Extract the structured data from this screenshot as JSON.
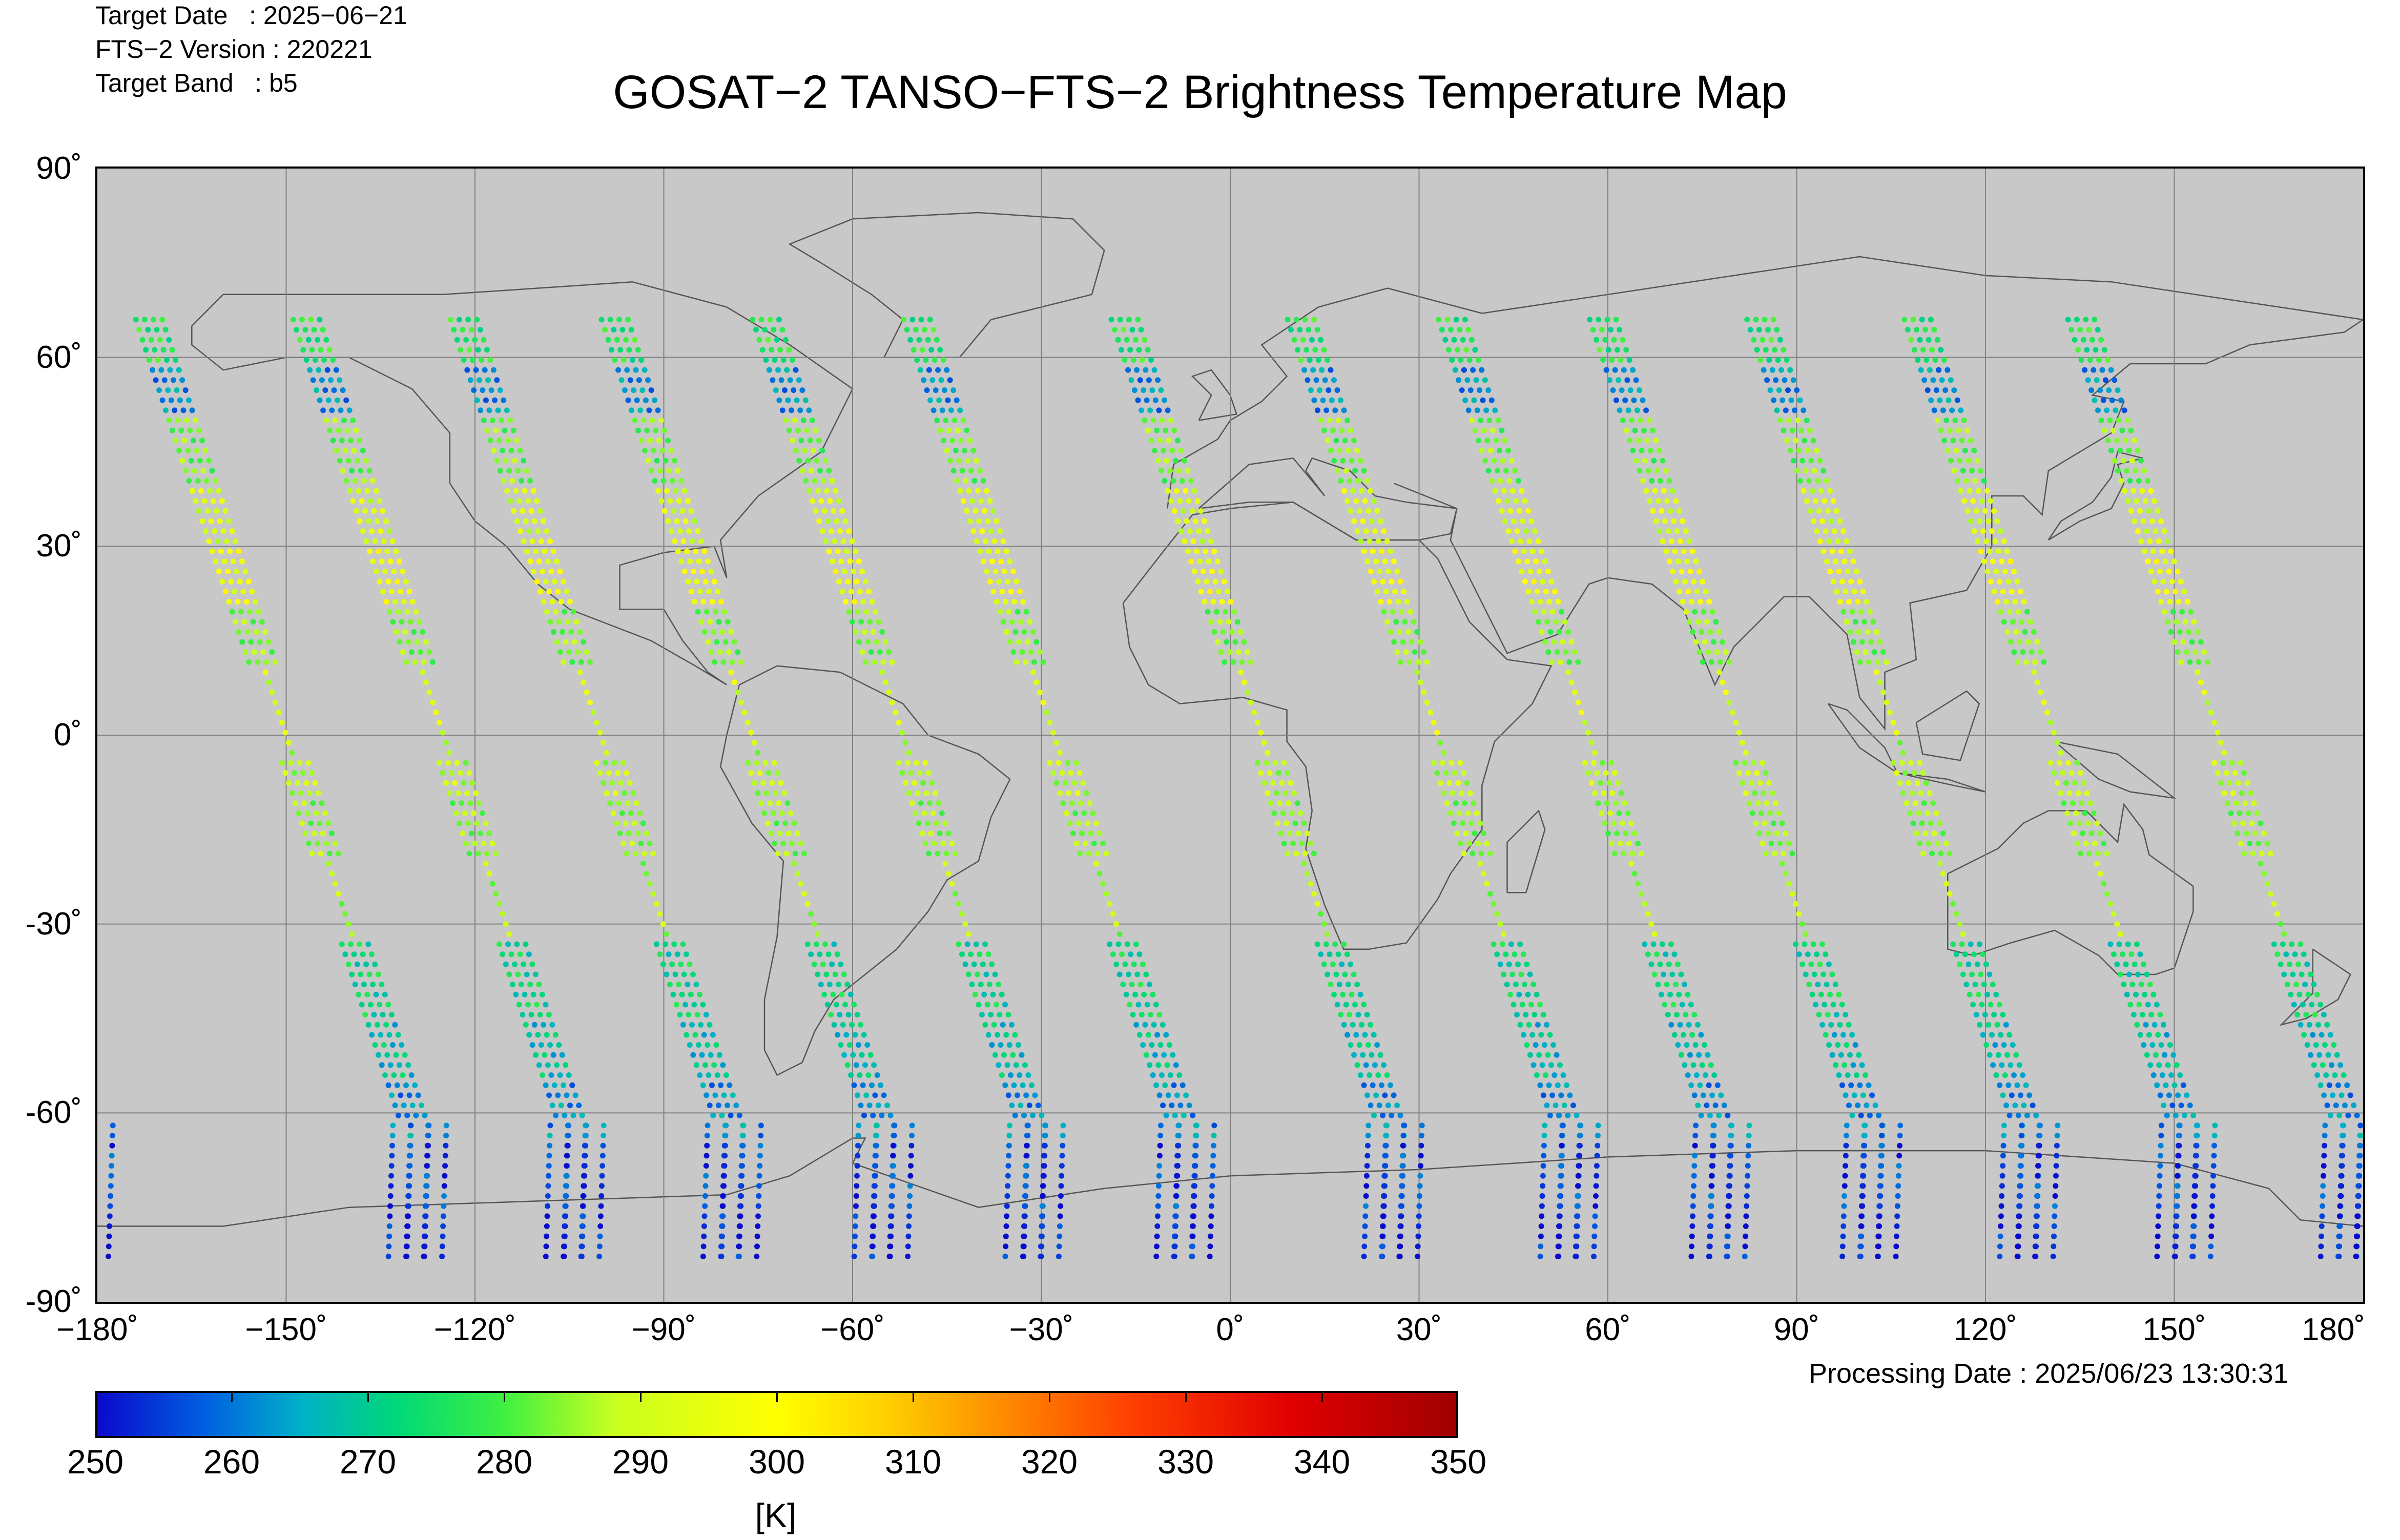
{
  "header": {
    "target_date_label": "Target Date   : 2025−06−21",
    "version_label": "FTS−2 Version : 220221",
    "band_label": "Target Band   : b5",
    "title": "GOSAT−2 TANSO−FTS−2 Brightness Temperature Map"
  },
  "footer": {
    "processing_date": "Processing Date : 2025/06/23 13:30:31"
  },
  "map": {
    "background_color": "#c8c8c8",
    "grid_color": "#808080",
    "coastline_color": "#555555",
    "projection": "equirectangular",
    "lon_range": [
      -180,
      180
    ],
    "lat_range": [
      -90,
      90
    ],
    "lat_ticks": [
      "90˚",
      "60˚",
      "30˚",
      "0˚",
      "-30˚",
      "-60˚",
      "-90˚"
    ],
    "lon_ticks": [
      "−180˚",
      "−150˚",
      "−120˚",
      "−90˚",
      "−60˚",
      "−30˚",
      "0˚",
      "30˚",
      "60˚",
      "90˚",
      "120˚",
      "150˚",
      "180˚"
    ]
  },
  "colorbar": {
    "min": 250,
    "max": 350,
    "ticks": [
      "250",
      "260",
      "270",
      "280",
      "290",
      "300",
      "310",
      "320",
      "330",
      "340",
      "350"
    ],
    "unit": "[K]",
    "colors": [
      "#0a0acc",
      "#0060e0",
      "#00b0c8",
      "#00d878",
      "#40f040",
      "#c8ff20",
      "#ffff00",
      "#ffd000",
      "#ff9000",
      "#ff4000",
      "#e00000",
      "#a00000"
    ]
  },
  "chart_data": {
    "type": "scatter",
    "description_of_encoding": "brightness temperature swaths along satellite tracks",
    "tracks_lon_at_equator": [
      -150,
      -125,
      -100,
      -76,
      -52,
      -28,
      5,
      33,
      57,
      81,
      106,
      131,
      157
    ],
    "track_slope_deg_lon_per_deg_lat": -0.33,
    "temperature_by_lat_band": [
      {
        "lat": 62,
        "temp": 276
      },
      {
        "lat": 55,
        "temp": 262
      },
      {
        "lat": 45,
        "temp": 283
      },
      {
        "lat": 35,
        "temp": 292
      },
      {
        "lat": 25,
        "temp": 296
      },
      {
        "lat": 15,
        "temp": 284
      },
      {
        "lat": 5,
        "temp": 292
      },
      {
        "lat": -5,
        "temp": 288
      },
      {
        "lat": -15,
        "temp": 285
      },
      {
        "lat": -25,
        "temp": 287
      },
      {
        "lat": -40,
        "temp": 272
      },
      {
        "lat": -50,
        "temp": 268
      },
      {
        "lat": -60,
        "temp": 262
      },
      {
        "lat": -70,
        "temp": 255
      },
      {
        "lat": -80,
        "temp": 252
      }
    ]
  }
}
